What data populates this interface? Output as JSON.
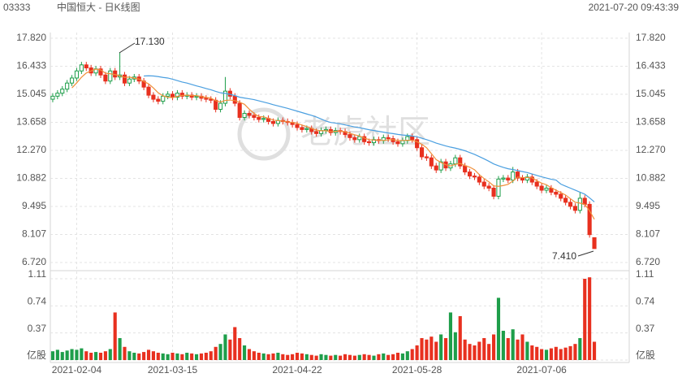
{
  "chart_data": {
    "type": "candlestick",
    "header": {
      "code": "03333",
      "title": "中国恒大 - 日K线图",
      "datetime": "2021-07-20 09:43:39"
    },
    "watermark": "老虎社区",
    "categories": [
      null,
      null,
      null,
      null,
      null,
      "2021-02-04",
      null,
      null,
      null,
      null,
      null,
      null,
      null,
      null,
      null,
      null,
      null,
      null,
      null,
      null,
      null,
      null,
      null,
      null,
      null,
      "2021-03-15",
      null,
      null,
      null,
      null,
      null,
      null,
      null,
      null,
      null,
      null,
      null,
      null,
      null,
      null,
      null,
      null,
      null,
      null,
      null,
      null,
      null,
      null,
      null,
      null,
      null,
      "2021-04-22",
      null,
      null,
      null,
      null,
      null,
      null,
      null,
      null,
      null,
      null,
      null,
      null,
      null,
      null,
      null,
      null,
      null,
      null,
      null,
      null,
      null,
      null,
      null,
      null,
      "2021-05-28",
      null,
      null,
      null,
      null,
      null,
      null,
      null,
      null,
      null,
      null,
      null,
      null,
      null,
      null,
      null,
      null,
      null,
      null,
      null,
      null,
      null,
      null,
      null,
      null,
      null,
      "2021-07-06",
      null,
      null,
      null,
      null,
      null,
      null,
      null,
      null,
      null,
      null,
      null
    ],
    "open": [
      14.8,
      14.95,
      15.1,
      15.3,
      15.6,
      15.85,
      16.2,
      16.5,
      16.35,
      16.1,
      16.3,
      16.0,
      15.7,
      16.2,
      15.9,
      16.0,
      15.6,
      15.8,
      15.9,
      15.7,
      15.4,
      15.0,
      14.8,
      14.7,
      14.95,
      15.05,
      14.9,
      15.1,
      14.95,
      15.0,
      14.9,
      14.95,
      14.85,
      14.8,
      14.75,
      14.3,
      14.6,
      15.2,
      14.95,
      14.6,
      13.9,
      14.1,
      14.0,
      13.9,
      13.8,
      13.85,
      13.7,
      13.6,
      13.75,
      13.7,
      13.65,
      13.55,
      13.4,
      13.3,
      13.35,
      13.2,
      13.1,
      13.25,
      13.3,
      13.15,
      13.25,
      13.2,
      13.05,
      12.9,
      12.8,
      12.95,
      12.7,
      12.65,
      12.8,
      12.75,
      12.9,
      12.85,
      12.7,
      12.6,
      12.75,
      12.95,
      12.8,
      12.4,
      11.95,
      11.9,
      11.5,
      11.3,
      11.7,
      11.4,
      11.6,
      11.9,
      11.5,
      11.2,
      11.0,
      10.95,
      10.7,
      10.5,
      10.4,
      10.0,
      10.85,
      10.9,
      10.8,
      11.2,
      10.9,
      10.8,
      10.95,
      10.7,
      10.5,
      10.3,
      10.4,
      10.2,
      10.1,
      9.9,
      9.7,
      9.5,
      9.3,
      9.9,
      9.6,
      7.95
    ],
    "high": [
      15.1,
      15.25,
      15.45,
      15.75,
      16.0,
      16.35,
      16.65,
      16.65,
      16.5,
      16.45,
      16.45,
      16.15,
      16.35,
      16.35,
      17.13,
      16.15,
      15.95,
      16.05,
      16.05,
      15.85,
      15.55,
      15.15,
      14.95,
      15.1,
      15.2,
      15.2,
      15.25,
      15.25,
      15.15,
      15.15,
      15.1,
      15.1,
      15.0,
      14.95,
      14.9,
      14.75,
      15.9,
      15.35,
      15.1,
      14.75,
      14.25,
      14.25,
      14.15,
      14.05,
      14.0,
      14.0,
      13.85,
      13.9,
      13.9,
      13.85,
      13.8,
      13.7,
      13.55,
      13.5,
      13.5,
      13.35,
      13.4,
      13.45,
      13.45,
      13.4,
      13.4,
      13.35,
      13.2,
      13.05,
      13.1,
      13.1,
      12.85,
      12.95,
      12.95,
      13.05,
      13.05,
      13.0,
      12.85,
      12.9,
      13.1,
      13.1,
      12.95,
      12.55,
      12.1,
      12.05,
      11.65,
      11.85,
      11.85,
      11.75,
      12.05,
      12.05,
      11.65,
      11.35,
      11.15,
      11.1,
      10.85,
      10.65,
      10.55,
      11.0,
      11.05,
      11.05,
      11.45,
      11.35,
      11.05,
      11.1,
      11.1,
      10.85,
      10.65,
      10.55,
      10.55,
      10.35,
      10.25,
      10.05,
      9.85,
      9.65,
      10.2,
      10.05,
      9.75,
      7.95
    ],
    "low": [
      14.65,
      14.8,
      14.95,
      15.15,
      15.45,
      15.7,
      16.05,
      16.2,
      15.95,
      15.95,
      15.85,
      15.55,
      15.55,
      15.75,
      15.75,
      15.45,
      15.45,
      15.65,
      15.55,
      15.25,
      14.85,
      14.65,
      14.55,
      14.55,
      14.8,
      14.75,
      14.75,
      14.8,
      14.8,
      14.75,
      14.75,
      14.7,
      14.65,
      14.6,
      14.15,
      14.15,
      14.45,
      14.8,
      14.45,
      13.75,
      13.75,
      13.85,
      13.75,
      13.65,
      13.65,
      13.55,
      13.45,
      13.45,
      13.55,
      13.5,
      13.4,
      13.25,
      13.15,
      13.15,
      13.05,
      12.95,
      12.95,
      13.1,
      13.0,
      13.0,
      13.05,
      12.9,
      12.75,
      12.65,
      12.65,
      12.55,
      12.5,
      12.5,
      12.6,
      12.6,
      12.7,
      12.55,
      12.45,
      12.45,
      12.6,
      12.65,
      12.25,
      11.8,
      11.75,
      11.35,
      11.15,
      11.15,
      11.25,
      11.25,
      11.45,
      11.35,
      11.05,
      10.85,
      10.8,
      10.55,
      10.35,
      10.25,
      9.85,
      9.85,
      10.7,
      10.65,
      10.65,
      10.75,
      10.65,
      10.65,
      10.55,
      10.35,
      10.15,
      10.15,
      10.05,
      9.95,
      9.75,
      9.55,
      9.35,
      9.15,
      9.15,
      9.45,
      7.95,
      7.41
    ],
    "close": [
      14.95,
      15.1,
      15.3,
      15.6,
      15.85,
      16.2,
      16.5,
      16.35,
      16.1,
      16.3,
      16.0,
      15.7,
      16.2,
      15.9,
      16.0,
      15.6,
      15.8,
      15.9,
      15.7,
      15.4,
      15.0,
      14.8,
      14.7,
      14.95,
      15.05,
      14.9,
      15.1,
      14.95,
      15.0,
      14.9,
      14.95,
      14.85,
      14.8,
      14.75,
      14.3,
      14.6,
      15.2,
      14.95,
      14.6,
      13.9,
      14.1,
      14.0,
      13.9,
      13.8,
      13.85,
      13.7,
      13.6,
      13.75,
      13.7,
      13.65,
      13.55,
      13.4,
      13.3,
      13.35,
      13.2,
      13.1,
      13.25,
      13.3,
      13.15,
      13.25,
      13.2,
      13.05,
      12.9,
      12.8,
      12.95,
      12.7,
      12.65,
      12.8,
      12.75,
      12.9,
      12.85,
      12.7,
      12.6,
      12.75,
      12.95,
      12.8,
      12.4,
      11.95,
      11.9,
      11.5,
      11.3,
      11.7,
      11.4,
      11.6,
      11.9,
      11.5,
      11.2,
      11.0,
      10.95,
      10.7,
      10.5,
      10.4,
      10.0,
      10.85,
      10.9,
      10.8,
      11.2,
      10.9,
      10.8,
      10.95,
      10.7,
      10.5,
      10.3,
      10.4,
      10.2,
      10.1,
      9.9,
      9.7,
      9.5,
      9.3,
      9.9,
      9.6,
      8.1,
      7.41
    ],
    "volume": [
      0.12,
      0.14,
      0.11,
      0.13,
      0.15,
      0.14,
      0.16,
      0.12,
      0.1,
      0.11,
      0.1,
      0.12,
      0.15,
      0.65,
      0.3,
      0.18,
      0.12,
      0.1,
      0.09,
      0.11,
      0.14,
      0.12,
      0.1,
      0.09,
      0.08,
      0.1,
      0.09,
      0.08,
      0.1,
      0.09,
      0.08,
      0.09,
      0.1,
      0.12,
      0.18,
      0.22,
      0.35,
      0.28,
      0.45,
      0.3,
      0.2,
      0.15,
      0.12,
      0.1,
      0.09,
      0.08,
      0.09,
      0.1,
      0.08,
      0.07,
      0.08,
      0.1,
      0.09,
      0.08,
      0.07,
      0.06,
      0.08,
      0.07,
      0.06,
      0.07,
      0.06,
      0.08,
      0.07,
      0.06,
      0.07,
      0.08,
      0.07,
      0.06,
      0.08,
      0.09,
      0.07,
      0.08,
      0.1,
      0.09,
      0.12,
      0.15,
      0.2,
      0.3,
      0.28,
      0.32,
      0.25,
      0.35,
      0.3,
      0.65,
      0.38,
      0.6,
      0.28,
      0.22,
      0.2,
      0.25,
      0.3,
      0.22,
      0.35,
      0.85,
      0.4,
      0.3,
      0.42,
      0.28,
      0.35,
      0.25,
      0.2,
      0.18,
      0.15,
      0.14,
      0.16,
      0.18,
      0.15,
      0.17,
      0.19,
      0.22,
      0.3,
      1.11,
      1.13,
      0.25
    ],
    "up_color": "#1e9e4a",
    "down_color": "#e8301f",
    "ma": [
      {
        "color": "#f0903a",
        "values": [
          null,
          null,
          null,
          null,
          15.36,
          15.61,
          15.89,
          16.1,
          16.2,
          16.29,
          16.25,
          16.09,
          16.06,
          16.02,
          15.96,
          15.88,
          15.9,
          15.84,
          15.8,
          15.68,
          15.56,
          15.36,
          15.12,
          14.97,
          14.9,
          14.88,
          14.94,
          14.99,
          15.0,
          14.98,
          14.98,
          14.93,
          14.89,
          14.85,
          14.73,
          14.66,
          14.74,
          14.76,
          14.73,
          14.65,
          14.55,
          14.31,
          14.1,
          13.94,
          13.93,
          13.85,
          13.77,
          13.74,
          13.72,
          13.68,
          13.65,
          13.61,
          13.52,
          13.45,
          13.36,
          13.27,
          13.24,
          13.24,
          13.2,
          13.21,
          13.23,
          13.19,
          13.11,
          13.04,
          12.98,
          12.88,
          12.8,
          12.78,
          12.77,
          12.76,
          12.79,
          12.8,
          12.76,
          12.76,
          12.77,
          12.76,
          12.7,
          12.57,
          12.4,
          12.11,
          11.81,
          11.67,
          11.56,
          11.5,
          11.58,
          11.62,
          11.52,
          11.44,
          11.31,
          11.07,
          10.87,
          10.71,
          10.51,
          10.49,
          10.53,
          10.59,
          10.75,
          10.95,
          10.92,
          10.93,
          10.91,
          10.77,
          10.65,
          10.57,
          10.42,
          10.3,
          10.18,
          10.06,
          9.88,
          9.7,
          9.66,
          9.6,
          9.28,
          8.86
        ]
      },
      {
        "color": "#4a9fe0",
        "values": [
          null,
          null,
          null,
          null,
          null,
          null,
          null,
          null,
          null,
          null,
          null,
          null,
          null,
          null,
          null,
          null,
          null,
          null,
          null,
          15.95,
          15.96,
          15.95,
          15.92,
          15.88,
          15.85,
          15.79,
          15.72,
          15.65,
          15.6,
          15.53,
          15.46,
          15.4,
          15.33,
          15.27,
          15.19,
          15.12,
          15.09,
          15.04,
          14.98,
          14.9,
          14.86,
          14.82,
          14.78,
          14.72,
          14.66,
          14.6,
          14.53,
          14.47,
          14.41,
          14.35,
          14.28,
          14.21,
          14.14,
          14.07,
          14.0,
          13.92,
          13.82,
          13.72,
          13.65,
          13.62,
          13.58,
          13.53,
          13.48,
          13.43,
          13.39,
          13.34,
          13.29,
          13.25,
          13.21,
          13.17,
          13.13,
          13.1,
          13.06,
          13.03,
          13.01,
          12.98,
          12.94,
          12.87,
          12.8,
          12.72,
          12.63,
          12.56,
          12.49,
          12.43,
          12.38,
          12.32,
          12.25,
          12.16,
          12.07,
          11.96,
          11.85,
          11.73,
          11.6,
          11.51,
          11.43,
          11.36,
          11.32,
          11.27,
          11.22,
          11.17,
          11.1,
          11.03,
          10.96,
          10.9,
          10.84,
          10.8,
          10.6,
          10.5,
          10.4,
          10.3,
          10.2,
          10.1,
          9.92,
          9.72
        ]
      }
    ],
    "ylim": [
      6.72,
      17.82
    ],
    "yticks": [
      {
        "value": 6.72,
        "label": "6.720"
      },
      {
        "value": 8.107,
        "label": "8.107"
      },
      {
        "value": 9.495,
        "label": "9.495"
      },
      {
        "value": 10.882,
        "label": "10.882"
      },
      {
        "value": 12.27,
        "label": "12.270"
      },
      {
        "value": 13.658,
        "label": "13.658"
      },
      {
        "value": 15.045,
        "label": "15.045"
      },
      {
        "value": 16.433,
        "label": "16.433"
      },
      {
        "value": 17.82,
        "label": "17.820"
      }
    ],
    "volume_ylim": [
      0,
      1.11
    ],
    "volume_yticks": [
      {
        "value": 0,
        "label": "亿股"
      },
      0.37,
      0.74,
      1.11
    ],
    "annotations": [
      "17.130",
      "7.410"
    ],
    "grid": true
  }
}
